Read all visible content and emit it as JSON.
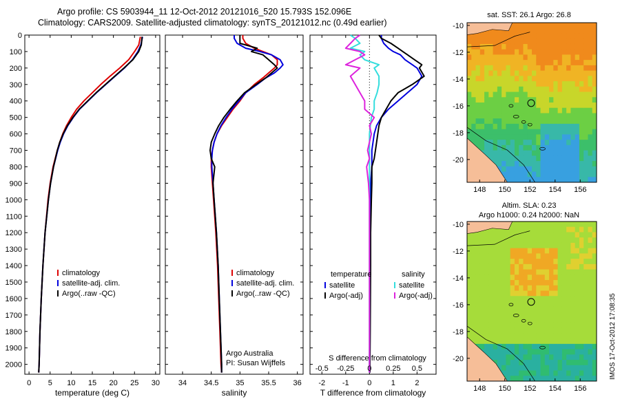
{
  "header": {
    "line1": "Argo profile: CS 5903944_11 12-Oct-2012 20121016_520 15.793S 152.096E",
    "line2": "Climatology: CARS2009. Satellite-adjusted climatology: synTS_20121012.nc (0.49d earlier)"
  },
  "colors": {
    "climatology": "#dd0000",
    "satellite": "#0000dd",
    "argo": "#000000",
    "salinity_sat": "#33dddd",
    "salinity_argo": "#dd22dd"
  },
  "chart_data": [
    {
      "type": "line",
      "name": "temperature",
      "xlabel": "temperature (deg C)",
      "xlim": [
        -1,
        31
      ],
      "xticks": [
        0,
        5,
        10,
        15,
        20,
        25,
        30
      ],
      "ylim": [
        2060,
        0
      ],
      "yticks": [
        0,
        100,
        200,
        300,
        400,
        500,
        600,
        700,
        800,
        900,
        1000,
        1100,
        1200,
        1300,
        1400,
        1500,
        1600,
        1700,
        1800,
        1900,
        2000
      ],
      "legend": [
        "climatology",
        "satellite-adj. clim.",
        "Argo(..raw -QC)"
      ],
      "depth": [
        10,
        60,
        100,
        150,
        200,
        250,
        300,
        350,
        400,
        450,
        500,
        550,
        600,
        650,
        700,
        800,
        900,
        1000,
        1200,
        1400,
        1600,
        1800,
        2000,
        2050
      ],
      "series": [
        {
          "name": "climatology",
          "color_key": "climatology",
          "values": [
            26.4,
            26.0,
            25.0,
            23.6,
            21.5,
            19.2,
            17.0,
            15.0,
            13.0,
            11.3,
            10.0,
            8.9,
            8.0,
            7.3,
            6.7,
            5.7,
            5.0,
            4.5,
            3.8,
            3.3,
            2.9,
            2.6,
            2.4,
            2.3
          ]
        },
        {
          "name": "satellite-adj. clim.",
          "color_key": "satellite",
          "values": [
            26.9,
            26.5,
            25.8,
            24.5,
            22.6,
            20.4,
            18.2,
            16.0,
            14.0,
            12.0,
            10.5,
            9.2,
            8.2,
            7.4,
            6.8,
            5.8,
            5.1,
            4.6,
            3.8,
            3.3,
            2.9,
            2.6,
            2.4,
            2.3
          ]
        },
        {
          "name": "Argo(..raw -QC)",
          "color_key": "argo",
          "values": [
            26.8,
            26.6,
            26.0,
            24.6,
            22.5,
            20.3,
            18.1,
            15.9,
            13.9,
            11.9,
            10.4,
            9.1,
            8.1,
            7.3,
            6.7,
            5.8,
            5.1,
            4.6,
            3.8,
            3.3,
            2.9,
            2.6,
            2.4,
            2.3
          ]
        }
      ]
    },
    {
      "type": "line",
      "name": "salinity",
      "xlabel": "salinity",
      "xlim": [
        33.7,
        36.1
      ],
      "xticks": [
        34,
        34.5,
        35,
        35.5,
        36
      ],
      "ylim": [
        2060,
        0
      ],
      "legend": [
        "climatology",
        "satellite-adj. clim.",
        "Argo(..raw -QC)"
      ],
      "annotation": [
        "Argo Australia",
        "PI: Susan Wijffels"
      ],
      "depth": [
        0,
        20,
        50,
        80,
        100,
        120,
        150,
        180,
        200,
        230,
        260,
        300,
        350,
        400,
        450,
        500,
        550,
        600,
        650,
        700,
        750,
        800,
        900,
        1000,
        1200,
        1400,
        1600,
        1800,
        2000,
        2050
      ],
      "series": [
        {
          "name": "climatology",
          "color_key": "climatology",
          "values": [
            35.05,
            35.05,
            35.1,
            35.25,
            35.4,
            35.55,
            35.65,
            35.65,
            35.6,
            35.5,
            35.4,
            35.25,
            35.1,
            35.0,
            34.88,
            34.78,
            34.68,
            34.6,
            34.55,
            34.52,
            34.5,
            34.5,
            34.52,
            34.54,
            34.58,
            34.61,
            34.63,
            34.65,
            34.67,
            34.68
          ]
        },
        {
          "name": "satellite-adj. clim.",
          "color_key": "satellite",
          "values": [
            34.9,
            34.9,
            34.95,
            35.1,
            35.35,
            35.55,
            35.7,
            35.75,
            35.7,
            35.6,
            35.45,
            35.3,
            35.1,
            34.98,
            34.86,
            34.76,
            34.67,
            34.6,
            34.55,
            34.52,
            34.51,
            34.51,
            34.53,
            34.55,
            34.59,
            34.62,
            34.64,
            34.66,
            34.68,
            34.68
          ]
        },
        {
          "name": "Argo(..raw -QC)",
          "color_key": "argo",
          "values": [
            35.0,
            35.0,
            35.0,
            35.3,
            35.2,
            35.4,
            35.5,
            35.6,
            35.65,
            35.55,
            35.45,
            35.28,
            35.08,
            34.95,
            34.83,
            34.72,
            34.63,
            34.56,
            34.5,
            34.48,
            34.5,
            34.56,
            34.53,
            34.55,
            34.59,
            34.62,
            34.64,
            34.66,
            34.68,
            34.68
          ]
        }
      ]
    },
    {
      "type": "line",
      "name": "difference",
      "xlabel_bottom": "T difference from climatology",
      "xlabel_top": "S difference from climatology",
      "xlim": [
        -2.5,
        2.8
      ],
      "xticks": [
        -2,
        -1,
        0,
        1,
        2
      ],
      "s_ticks": [
        -0.5,
        -0.25,
        0,
        0.25,
        0.5
      ],
      "s_tick_labels": [
        "-0.5",
        "-0.25",
        "0",
        "0.25",
        "0.5"
      ],
      "ylim": [
        2060,
        0
      ],
      "legend_temperature_title": "temperature",
      "legend_salinity_title": "salinity",
      "legend": [
        "satellite",
        "Argo(-adj)",
        "satellite",
        "Argo(-adj)"
      ],
      "depth": [
        0,
        20,
        50,
        80,
        100,
        120,
        150,
        180,
        200,
        250,
        300,
        350,
        400,
        450,
        500,
        550,
        600,
        650,
        700,
        750,
        800,
        900,
        1000,
        1200,
        1400,
        1600,
        1800,
        2000,
        2050
      ],
      "series": [
        {
          "name": "temperature satellite",
          "color_key": "satellite",
          "values": [
            0.5,
            0.5,
            0.6,
            0.8,
            1.0,
            1.3,
            1.5,
            1.8,
            2.0,
            2.2,
            2.0,
            1.6,
            1.2,
            0.8,
            0.5,
            0.3,
            0.2,
            0.15,
            0.1,
            0.1,
            0.1,
            0.05,
            0.05,
            0.03,
            0.02,
            0.02,
            0.01,
            0.0,
            0.0
          ]
        },
        {
          "name": "temperature Argo(-adj)",
          "color_key": "argo",
          "values": [
            0.4,
            0.5,
            0.9,
            1.2,
            1.4,
            1.6,
            1.9,
            2.2,
            2.1,
            2.3,
            1.8,
            1.2,
            0.9,
            0.7,
            0.5,
            0.4,
            0.35,
            0.3,
            0.25,
            0.2,
            0.1,
            0.1,
            0.08,
            0.05,
            0.05,
            0.04,
            0.03,
            0.02,
            0.02
          ]
        },
        {
          "name": "salinity satellite",
          "color_key": "salinity_sat",
          "values": [
            -0.2,
            -0.15,
            -0.1,
            -0.2,
            -0.05,
            -0.1,
            -0.05,
            0.1,
            0.05,
            0.1,
            0.1,
            0.08,
            0.05,
            0.05,
            0.02,
            0.01,
            0.0,
            0.0,
            0.0,
            0.0,
            0.0,
            0.0,
            0.0,
            0.0,
            0.0,
            0.0,
            0.0,
            0.0,
            0.0
          ]
        },
        {
          "name": "salinity Argo(-adj)",
          "color_key": "salinity_argo",
          "values": [
            -0.1,
            -0.15,
            -0.2,
            -0.25,
            -0.1,
            -0.05,
            -0.15,
            -0.25,
            -0.1,
            -0.2,
            -0.15,
            -0.1,
            -0.05,
            -0.05,
            0.05,
            0.0,
            0.02,
            0.0,
            -0.02,
            0.0,
            -0.03,
            -0.01,
            0.0,
            0.0,
            0.0,
            0.0,
            0.0,
            0.0,
            0.0
          ]
        }
      ]
    },
    {
      "type": "heatmap",
      "name": "sst_map",
      "title": "sat. SST: 26.1  Argo: 26.8",
      "xlim": [
        147,
        157.3
      ],
      "ylim": [
        -21.7,
        -9.8
      ],
      "xticks": [
        148,
        150,
        152,
        154,
        156
      ],
      "yticks": [
        -10,
        -12,
        -14,
        -16,
        -18,
        -20
      ],
      "profile_lon": 152.096,
      "profile_lat": -15.793
    },
    {
      "type": "heatmap",
      "name": "sla_map",
      "title_line1": "Altim. SLA: 0.23",
      "title_line2": "Argo h1000: 0.24 h2000: NaN",
      "xlim": [
        147,
        157.3
      ],
      "ylim": [
        -21.7,
        -9.8
      ],
      "xticks": [
        148,
        150,
        152,
        154,
        156
      ],
      "yticks": [
        -10,
        -12,
        -14,
        -16,
        -18,
        -20
      ],
      "profile_lon": 152.096,
      "profile_lat": -15.793
    }
  ],
  "footer": {
    "credit": "IMOS 17-Oct-2012 17:08:35"
  }
}
